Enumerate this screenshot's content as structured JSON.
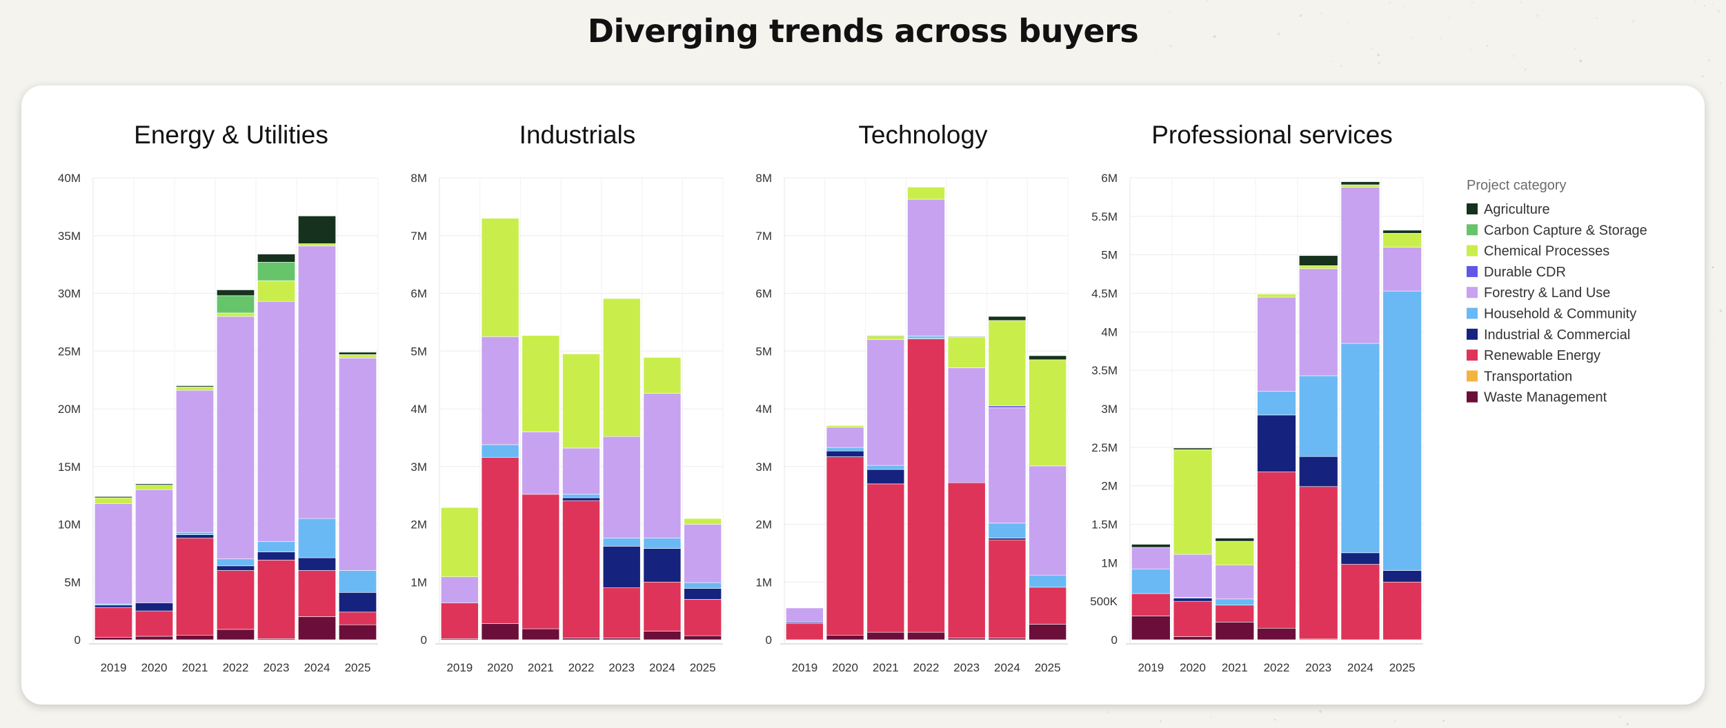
{
  "title": "Diverging trends across buyers",
  "legend": {
    "title": "Project category",
    "items": [
      {
        "name": "Agriculture",
        "color": "#16321f"
      },
      {
        "name": "Carbon Capture & Storage",
        "color": "#66c46b"
      },
      {
        "name": "Chemical Processes",
        "color": "#c9ee4c"
      },
      {
        "name": "Durable CDR",
        "color": "#6356e6"
      },
      {
        "name": "Forestry & Land Use",
        "color": "#c7a2f0"
      },
      {
        "name": "Household & Community",
        "color": "#6ab9f5"
      },
      {
        "name": "Industrial & Commercial",
        "color": "#15237e"
      },
      {
        "name": "Renewable Energy",
        "color": "#df3459"
      },
      {
        "name": "Transportation",
        "color": "#f3b43f"
      },
      {
        "name": "Waste Management",
        "color": "#6b0f3a"
      }
    ]
  },
  "chart_data": [
    {
      "type": "bar",
      "stacked": true,
      "title": "Energy & Utilities",
      "categories": [
        "2019",
        "2020",
        "2021",
        "2022",
        "2023",
        "2024",
        "2025"
      ],
      "ylim": [
        0,
        40000000
      ],
      "yticks": [
        0,
        5000000,
        10000000,
        15000000,
        20000000,
        25000000,
        30000000,
        35000000,
        40000000
      ],
      "ytick_labels": [
        "0",
        "5M",
        "10M",
        "15M",
        "20M",
        "25M",
        "30M",
        "35M",
        "40M"
      ],
      "grid": true,
      "series": [
        {
          "name": "Waste Management",
          "values": [
            200000,
            300000,
            400000,
            900000,
            100000,
            2000000,
            1300000
          ]
        },
        {
          "name": "Transportation",
          "values": [
            0,
            0,
            0,
            0,
            0,
            0,
            0
          ]
        },
        {
          "name": "Renewable Energy",
          "values": [
            2600000,
            2200000,
            8400000,
            5100000,
            6800000,
            4000000,
            1100000
          ]
        },
        {
          "name": "Industrial & Commercial",
          "values": [
            200000,
            700000,
            300000,
            400000,
            700000,
            1100000,
            1700000
          ]
        },
        {
          "name": "Household & Community",
          "values": [
            100000,
            0,
            200000,
            600000,
            900000,
            3400000,
            1900000
          ]
        },
        {
          "name": "Forestry & Land Use",
          "values": [
            8700000,
            9800000,
            12300000,
            21000000,
            20800000,
            23600000,
            18400000
          ]
        },
        {
          "name": "Durable CDR",
          "values": [
            0,
            0,
            0,
            0,
            0,
            0,
            0
          ]
        },
        {
          "name": "Chemical Processes",
          "values": [
            500000,
            400000,
            300000,
            300000,
            1800000,
            200000,
            300000
          ]
        },
        {
          "name": "Carbon Capture & Storage",
          "values": [
            0,
            0,
            0,
            1500000,
            1600000,
            0,
            0
          ]
        },
        {
          "name": "Agriculture",
          "values": [
            100000,
            100000,
            100000,
            500000,
            700000,
            2400000,
            200000
          ]
        }
      ]
    },
    {
      "type": "bar",
      "stacked": true,
      "title": "Industrials",
      "categories": [
        "2019",
        "2020",
        "2021",
        "2022",
        "2023",
        "2024",
        "2025"
      ],
      "ylim": [
        0,
        8000000
      ],
      "yticks": [
        0,
        1000000,
        2000000,
        3000000,
        4000000,
        5000000,
        6000000,
        7000000,
        8000000
      ],
      "ytick_labels": [
        "0",
        "1M",
        "2M",
        "3M",
        "4M",
        "5M",
        "6M",
        "7M",
        "8M"
      ],
      "grid": true,
      "series": [
        {
          "name": "Waste Management",
          "values": [
            20000,
            280000,
            190000,
            30000,
            30000,
            150000,
            70000
          ]
        },
        {
          "name": "Transportation",
          "values": [
            0,
            0,
            0,
            0,
            0,
            0,
            0
          ]
        },
        {
          "name": "Renewable Energy",
          "values": [
            620000,
            2880000,
            2330000,
            2380000,
            870000,
            850000,
            630000
          ]
        },
        {
          "name": "Industrial & Commercial",
          "values": [
            0,
            0,
            0,
            50000,
            720000,
            580000,
            190000
          ]
        },
        {
          "name": "Household & Community",
          "values": [
            0,
            220000,
            0,
            60000,
            140000,
            180000,
            100000
          ]
        },
        {
          "name": "Forestry & Land Use",
          "values": [
            450000,
            1870000,
            1080000,
            800000,
            1760000,
            2510000,
            1010000
          ]
        },
        {
          "name": "Durable CDR",
          "values": [
            0,
            0,
            0,
            0,
            0,
            0,
            0
          ]
        },
        {
          "name": "Chemical Processes",
          "values": [
            1200000,
            2050000,
            1670000,
            1630000,
            2390000,
            620000,
            100000
          ]
        },
        {
          "name": "Carbon Capture & Storage",
          "values": [
            0,
            0,
            0,
            0,
            0,
            0,
            0
          ]
        },
        {
          "name": "Agriculture",
          "values": [
            0,
            0,
            0,
            0,
            0,
            0,
            0
          ]
        }
      ]
    },
    {
      "type": "bar",
      "stacked": true,
      "title": "Technology",
      "categories": [
        "2019",
        "2020",
        "2021",
        "2022",
        "2023",
        "2024",
        "2025"
      ],
      "ylim": [
        0,
        8000000
      ],
      "yticks": [
        0,
        1000000,
        2000000,
        3000000,
        4000000,
        5000000,
        6000000,
        7000000,
        8000000
      ],
      "ytick_labels": [
        "0",
        "1M",
        "2M",
        "3M",
        "4M",
        "5M",
        "6M",
        "7M",
        "8M"
      ],
      "grid": true,
      "series": [
        {
          "name": "Waste Management",
          "values": [
            0,
            80000,
            130000,
            130000,
            30000,
            30000,
            270000
          ]
        },
        {
          "name": "Transportation",
          "values": [
            0,
            0,
            0,
            0,
            0,
            0,
            0
          ]
        },
        {
          "name": "Renewable Energy",
          "values": [
            280000,
            3090000,
            2570000,
            5080000,
            2690000,
            1700000,
            640000
          ]
        },
        {
          "name": "Industrial & Commercial",
          "values": [
            20000,
            100000,
            250000,
            10000,
            0,
            30000,
            0
          ]
        },
        {
          "name": "Household & Community",
          "values": [
            0,
            60000,
            70000,
            40000,
            0,
            260000,
            210000
          ]
        },
        {
          "name": "Forestry & Land Use",
          "values": [
            250000,
            350000,
            2180000,
            2370000,
            1990000,
            2000000,
            1890000
          ]
        },
        {
          "name": "Durable CDR",
          "values": [
            0,
            0,
            0,
            0,
            0,
            30000,
            0
          ]
        },
        {
          "name": "Chemical Processes",
          "values": [
            0,
            30000,
            60000,
            210000,
            530000,
            1480000,
            1840000
          ]
        },
        {
          "name": "Carbon Capture & Storage",
          "values": [
            0,
            0,
            0,
            0,
            0,
            0,
            0
          ]
        },
        {
          "name": "Agriculture",
          "values": [
            0,
            0,
            10000,
            0,
            10000,
            70000,
            70000
          ]
        }
      ]
    },
    {
      "type": "bar",
      "stacked": true,
      "title": "Professional services",
      "categories": [
        "2019",
        "2020",
        "2021",
        "2022",
        "2023",
        "2024",
        "2025"
      ],
      "ylim": [
        0,
        6000000
      ],
      "yticks": [
        0,
        500000,
        1000000,
        1500000,
        2000000,
        2500000,
        3000000,
        3500000,
        4000000,
        4500000,
        5000000,
        5500000,
        6000000
      ],
      "ytick_labels": [
        "0",
        "500K",
        "1M",
        "1.5M",
        "2M",
        "2.5M",
        "3M",
        "3.5M",
        "4M",
        "4.5M",
        "5M",
        "5.5M",
        "6M"
      ],
      "grid": true,
      "series": [
        {
          "name": "Waste Management",
          "values": [
            310000,
            40000,
            230000,
            150000,
            10000,
            0,
            0
          ]
        },
        {
          "name": "Transportation",
          "values": [
            0,
            0,
            0,
            0,
            0,
            0,
            0
          ]
        },
        {
          "name": "Renewable Energy",
          "values": [
            290000,
            460000,
            220000,
            2030000,
            1980000,
            980000,
            750000
          ]
        },
        {
          "name": "Industrial & Commercial",
          "values": [
            0,
            40000,
            0,
            740000,
            390000,
            150000,
            150000
          ]
        },
        {
          "name": "Household & Community",
          "values": [
            320000,
            10000,
            80000,
            310000,
            1050000,
            2720000,
            3630000
          ]
        },
        {
          "name": "Forestry & Land Use",
          "values": [
            280000,
            560000,
            440000,
            1220000,
            1390000,
            2030000,
            570000
          ]
        },
        {
          "name": "Durable CDR",
          "values": [
            0,
            0,
            0,
            0,
            0,
            0,
            0
          ]
        },
        {
          "name": "Chemical Processes",
          "values": [
            0,
            1360000,
            310000,
            40000,
            40000,
            30000,
            180000
          ]
        },
        {
          "name": "Carbon Capture & Storage",
          "values": [
            0,
            0,
            0,
            0,
            0,
            0,
            0
          ]
        },
        {
          "name": "Agriculture",
          "values": [
            40000,
            20000,
            40000,
            0,
            130000,
            40000,
            40000
          ]
        }
      ]
    }
  ]
}
